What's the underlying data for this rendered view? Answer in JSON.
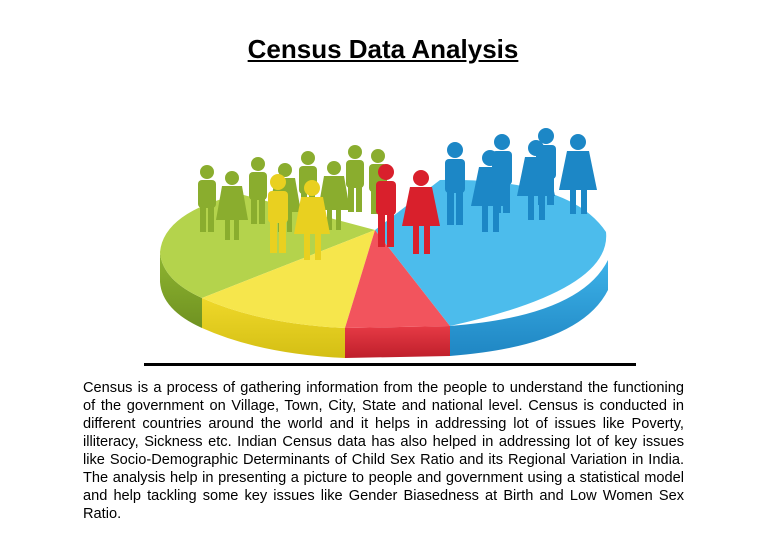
{
  "page": {
    "title": "Census Data Analysis",
    "body": "Census is a process of gathering information from the people to understand the functioning of the government on Village, Town, City, State and national level. Census is conducted in different countries around the world and it helps in addressing lot of issues like Poverty, illiteracy, Sickness etc. Indian Census data has also helped in addressing lot of key issues like Socio-Demographic Determinants of Child Sex Ratio and its Regional Variation in India. The analysis help in presenting a picture to people and government using a statistical model and help tackling some key issues like Gender Biasedness at Birth and Low Women Sex Ratio."
  },
  "illustration": {
    "icon": "census-pie-people-illustration",
    "colors": {
      "green": "#9cc33a",
      "yellow": "#f0df2e",
      "red": "#e8323c",
      "blue": "#2a98d6"
    }
  }
}
